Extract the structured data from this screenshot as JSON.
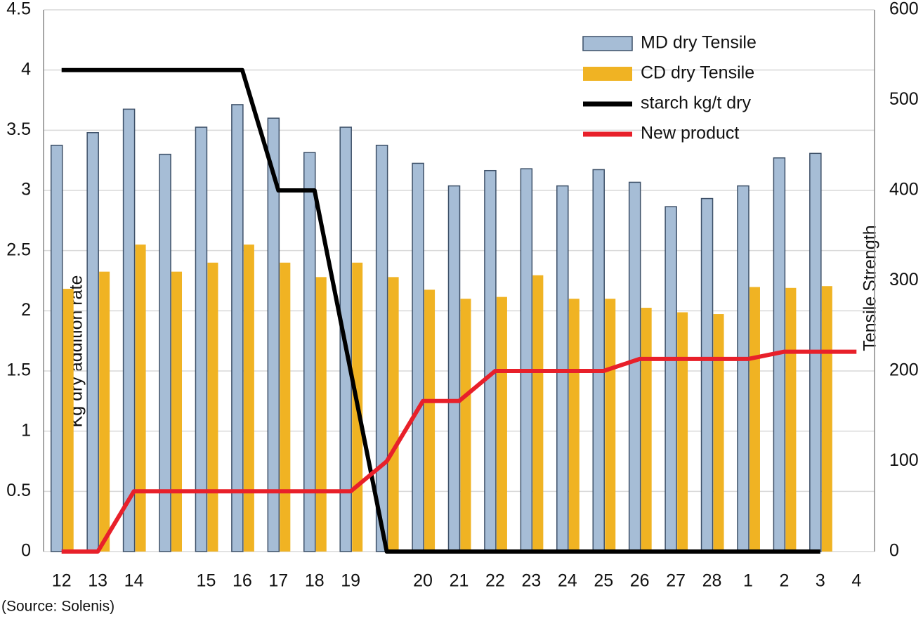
{
  "chart_data": {
    "type": "bar-line",
    "categories": [
      "12",
      "13",
      "14",
      null,
      "15",
      "16",
      "17",
      "18",
      "19",
      null,
      "20",
      "21",
      "22",
      "23",
      "24",
      "25",
      "26",
      "27",
      "28",
      "1",
      "2",
      "3",
      "4"
    ],
    "y_label": "Kg dry addition rate",
    "y2_label": "Tensile Strength",
    "source": "(Source: Solenis)",
    "ylim": [
      0,
      4.5
    ],
    "yticks": [
      0,
      0.5,
      1,
      1.5,
      2,
      2.5,
      3,
      3.5,
      4,
      4.5
    ],
    "y2lim": [
      0,
      600
    ],
    "y2ticks": [
      0,
      100,
      200,
      300,
      400,
      500,
      600
    ],
    "grid": true,
    "legend": "top-right",
    "series": [
      {
        "name": "MD dry Tensile",
        "kind": "bar",
        "axis": "y2",
        "color": "#a6bdd6",
        "values": [
          450,
          464,
          490,
          440,
          470,
          495,
          480,
          442,
          470,
          450,
          430,
          405,
          422,
          424,
          405,
          423,
          409,
          382,
          391,
          405,
          436,
          441,
          null
        ]
      },
      {
        "name": "CD dry Tensile",
        "kind": "bar",
        "axis": "y2",
        "color": "#f0b323",
        "values": [
          291,
          310,
          340,
          310,
          320,
          340,
          320,
          304,
          320,
          304,
          290,
          280,
          282,
          306,
          280,
          280,
          270,
          265,
          263,
          293,
          292,
          294,
          null
        ]
      },
      {
        "name": "starch kg/t dry",
        "kind": "line",
        "color": "#000000",
        "values": [
          4,
          4,
          4,
          4,
          4,
          4,
          3,
          3,
          1.5,
          0,
          0,
          0,
          0,
          0,
          0,
          0,
          0,
          0,
          0,
          0,
          0,
          0,
          null
        ]
      },
      {
        "name": "New product",
        "kind": "line",
        "color": "#e8202a",
        "values": [
          0,
          0,
          0.5,
          0.5,
          0.5,
          0.5,
          0.5,
          0.5,
          0.5,
          0.75,
          1.25,
          1.25,
          1.5,
          1.5,
          1.5,
          1.5,
          1.6,
          1.6,
          1.6,
          1.6,
          1.66,
          1.66,
          1.66
        ]
      }
    ]
  }
}
